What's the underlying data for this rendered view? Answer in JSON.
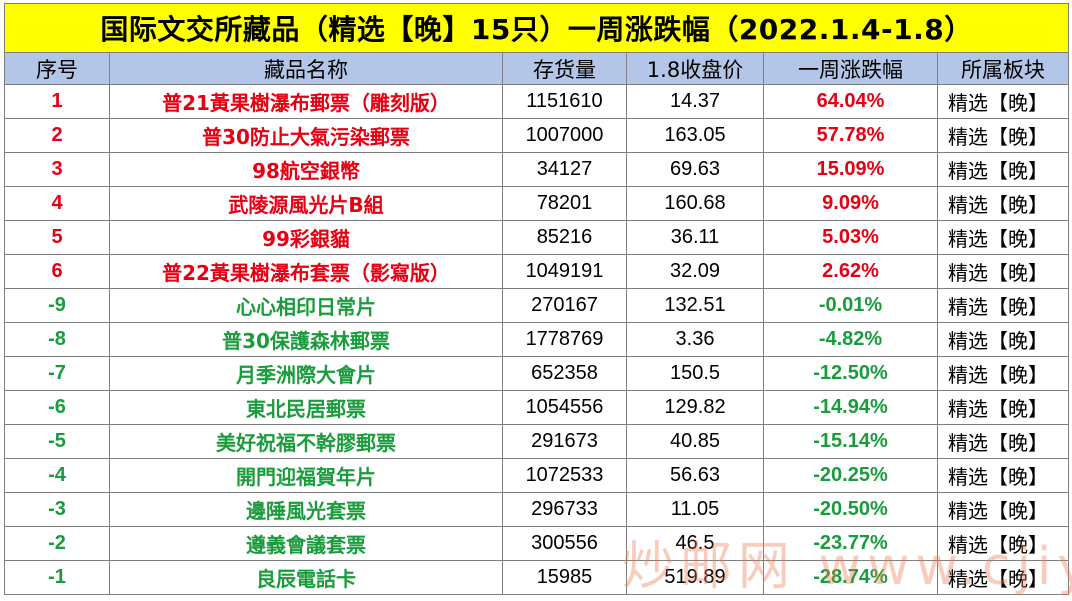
{
  "title": "国际文交所藏品（精选【晚】15只）一周涨跌幅（2022.1.4-1.8）",
  "headers": [
    "序号",
    "藏品名称",
    "存货量",
    "1.8收盘价",
    "一周涨跌幅",
    "所属板块"
  ],
  "colors": {
    "title_bg": "#ffff00",
    "header_bg": "#b4c6e7",
    "up": "#e60012",
    "down": "#1a9c3d",
    "watermark": "#ec7850"
  },
  "rows": [
    {
      "rank": "1",
      "name": "普21黃果樹瀑布郵票（雕刻版）",
      "stock": "1151610",
      "price": "14.37",
      "change": "64.04%",
      "sector": "精选【晚】",
      "trend": "up"
    },
    {
      "rank": "2",
      "name": "普30防止大氣污染郵票",
      "stock": "1007000",
      "price": "163.05",
      "change": "57.78%",
      "sector": "精选【晚】",
      "trend": "up"
    },
    {
      "rank": "3",
      "name": "98航空銀幣",
      "stock": "34127",
      "price": "69.63",
      "change": "15.09%",
      "sector": "精选【晚】",
      "trend": "up"
    },
    {
      "rank": "4",
      "name": "武陵源風光片B組",
      "stock": "78201",
      "price": "160.68",
      "change": "9.09%",
      "sector": "精选【晚】",
      "trend": "up"
    },
    {
      "rank": "5",
      "name": "99彩銀貓",
      "stock": "85216",
      "price": "36.11",
      "change": "5.03%",
      "sector": "精选【晚】",
      "trend": "up"
    },
    {
      "rank": "6",
      "name": "普22黃果樹瀑布套票（影寫版）",
      "stock": "1049191",
      "price": "32.09",
      "change": "2.62%",
      "sector": "精选【晚】",
      "trend": "up"
    },
    {
      "rank": "-9",
      "name": "心心相印日常片",
      "stock": "270167",
      "price": "132.51",
      "change": "-0.01%",
      "sector": "精选【晚】",
      "trend": "down"
    },
    {
      "rank": "-8",
      "name": "普30保護森林郵票",
      "stock": "1778769",
      "price": "3.36",
      "change": "-4.82%",
      "sector": "精选【晚】",
      "trend": "down"
    },
    {
      "rank": "-7",
      "name": "月季洲際大會片",
      "stock": "652358",
      "price": "150.5",
      "change": "-12.50%",
      "sector": "精选【晚】",
      "trend": "down"
    },
    {
      "rank": "-6",
      "name": "東北民居郵票",
      "stock": "1054556",
      "price": "129.82",
      "change": "-14.94%",
      "sector": "精选【晚】",
      "trend": "down"
    },
    {
      "rank": "-5",
      "name": "美好祝福不幹膠郵票",
      "stock": "291673",
      "price": "40.85",
      "change": "-15.14%",
      "sector": "精选【晚】",
      "trend": "down"
    },
    {
      "rank": "-4",
      "name": "開門迎福賀年片",
      "stock": "1072533",
      "price": "56.63",
      "change": "-20.25%",
      "sector": "精选【晚】",
      "trend": "down"
    },
    {
      "rank": "-3",
      "name": "邊陲風光套票",
      "stock": "296733",
      "price": "11.05",
      "change": "-20.50%",
      "sector": "精选【晚】",
      "trend": "down"
    },
    {
      "rank": "-2",
      "name": "遵義會議套票",
      "stock": "300556",
      "price": "46.5",
      "change": "-23.77%",
      "sector": "精选【晚】",
      "trend": "down"
    },
    {
      "rank": "-1",
      "name": "良辰電話卡",
      "stock": "15985",
      "price": "519.89",
      "change": "-28.74%",
      "sector": "精选【晚】",
      "trend": "down"
    }
  ],
  "watermark": "炒邮网 www.cjiyou.net"
}
